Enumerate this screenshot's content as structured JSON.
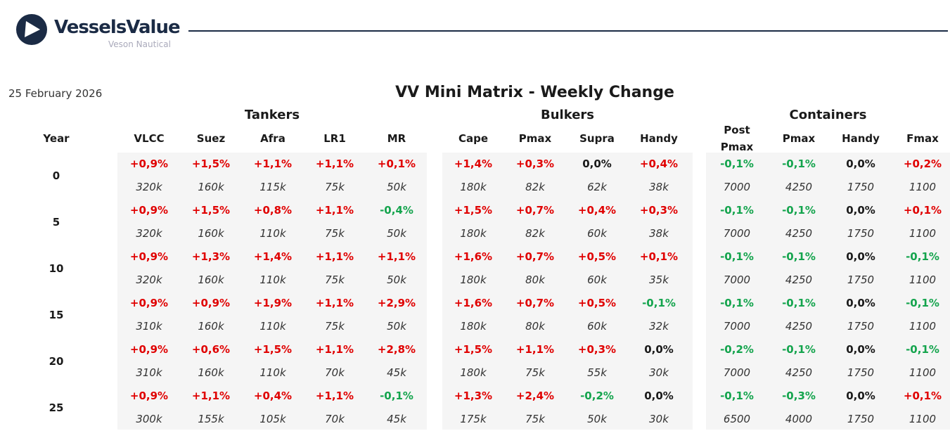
{
  "header": {
    "brand": "VesselsValue",
    "sub_brand": "Veson Nautical",
    "date": "25 February 2026",
    "title": "VV Mini Matrix - Weekly Change"
  },
  "colors": {
    "up": "#e00000",
    "down": "#14a44d",
    "flat": "#1a1a1a",
    "brand": "#1b2b45"
  },
  "year_label": "Year",
  "years": [
    "0",
    "5",
    "10",
    "15",
    "20",
    "25"
  ],
  "groups": [
    {
      "name": "Tankers",
      "columns": [
        {
          "label": "VLCC",
          "pct": [
            "+0,9%",
            "+0,9%",
            "+0,9%",
            "+0,9%",
            "+0,9%",
            "+0,9%"
          ],
          "val": [
            "320k",
            "320k",
            "320k",
            "310k",
            "310k",
            "300k"
          ]
        },
        {
          "label": "Suez",
          "pct": [
            "+1,5%",
            "+1,5%",
            "+1,3%",
            "+0,9%",
            "+0,6%",
            "+1,1%"
          ],
          "val": [
            "160k",
            "160k",
            "160k",
            "160k",
            "160k",
            "155k"
          ]
        },
        {
          "label": "Afra",
          "pct": [
            "+1,1%",
            "+0,8%",
            "+1,4%",
            "+1,9%",
            "+1,5%",
            "+0,4%"
          ],
          "val": [
            "115k",
            "110k",
            "110k",
            "110k",
            "110k",
            "105k"
          ]
        },
        {
          "label": "LR1",
          "pct": [
            "+1,1%",
            "+1,1%",
            "+1,1%",
            "+1,1%",
            "+1,1%",
            "+1,1%"
          ],
          "val": [
            "75k",
            "75k",
            "75k",
            "75k",
            "70k",
            "70k"
          ]
        },
        {
          "label": "MR",
          "pct": [
            "+0,1%",
            "-0,4%",
            "+1,1%",
            "+2,9%",
            "+2,8%",
            "-0,1%"
          ],
          "val": [
            "50k",
            "50k",
            "50k",
            "50k",
            "45k",
            "45k"
          ]
        }
      ]
    },
    {
      "name": "Bulkers",
      "columns": [
        {
          "label": "Cape",
          "pct": [
            "+1,4%",
            "+1,5%",
            "+1,6%",
            "+1,6%",
            "+1,5%",
            "+1,3%"
          ],
          "val": [
            "180k",
            "180k",
            "180k",
            "180k",
            "180k",
            "175k"
          ]
        },
        {
          "label": "Pmax",
          "pct": [
            "+0,3%",
            "+0,7%",
            "+0,7%",
            "+0,7%",
            "+1,1%",
            "+2,4%"
          ],
          "val": [
            "82k",
            "82k",
            "80k",
            "80k",
            "75k",
            "75k"
          ]
        },
        {
          "label": "Supra",
          "pct": [
            "0,0%",
            "+0,4%",
            "+0,5%",
            "+0,5%",
            "+0,3%",
            "-0,2%"
          ],
          "val": [
            "62k",
            "60k",
            "60k",
            "60k",
            "55k",
            "50k"
          ]
        },
        {
          "label": "Handy",
          "pct": [
            "+0,4%",
            "+0,3%",
            "+0,1%",
            "-0,1%",
            "0,0%",
            "0,0%"
          ],
          "val": [
            "38k",
            "38k",
            "35k",
            "32k",
            "30k",
            "30k"
          ]
        }
      ]
    },
    {
      "name": "Containers",
      "columns": [
        {
          "label": "Post Pmax",
          "pct": [
            "-0,1%",
            "-0,1%",
            "-0,1%",
            "-0,1%",
            "-0,2%",
            "-0,1%"
          ],
          "val": [
            "7000",
            "7000",
            "7000",
            "7000",
            "7000",
            "6500"
          ]
        },
        {
          "label": "Pmax",
          "pct": [
            "-0,1%",
            "-0,1%",
            "-0,1%",
            "-0,1%",
            "-0,1%",
            "-0,3%"
          ],
          "val": [
            "4250",
            "4250",
            "4250",
            "4250",
            "4250",
            "4000"
          ]
        },
        {
          "label": "Handy",
          "pct": [
            "0,0%",
            "0,0%",
            "0,0%",
            "0,0%",
            "0,0%",
            "0,0%"
          ],
          "val": [
            "1750",
            "1750",
            "1750",
            "1750",
            "1750",
            "1750"
          ]
        },
        {
          "label": "Fmax",
          "pct": [
            "+0,2%",
            "+0,1%",
            "-0,1%",
            "-0,1%",
            "-0,1%",
            "+0,1%"
          ],
          "val": [
            "1100",
            "1100",
            "1100",
            "1100",
            "1100",
            "1100"
          ]
        }
      ]
    }
  ]
}
